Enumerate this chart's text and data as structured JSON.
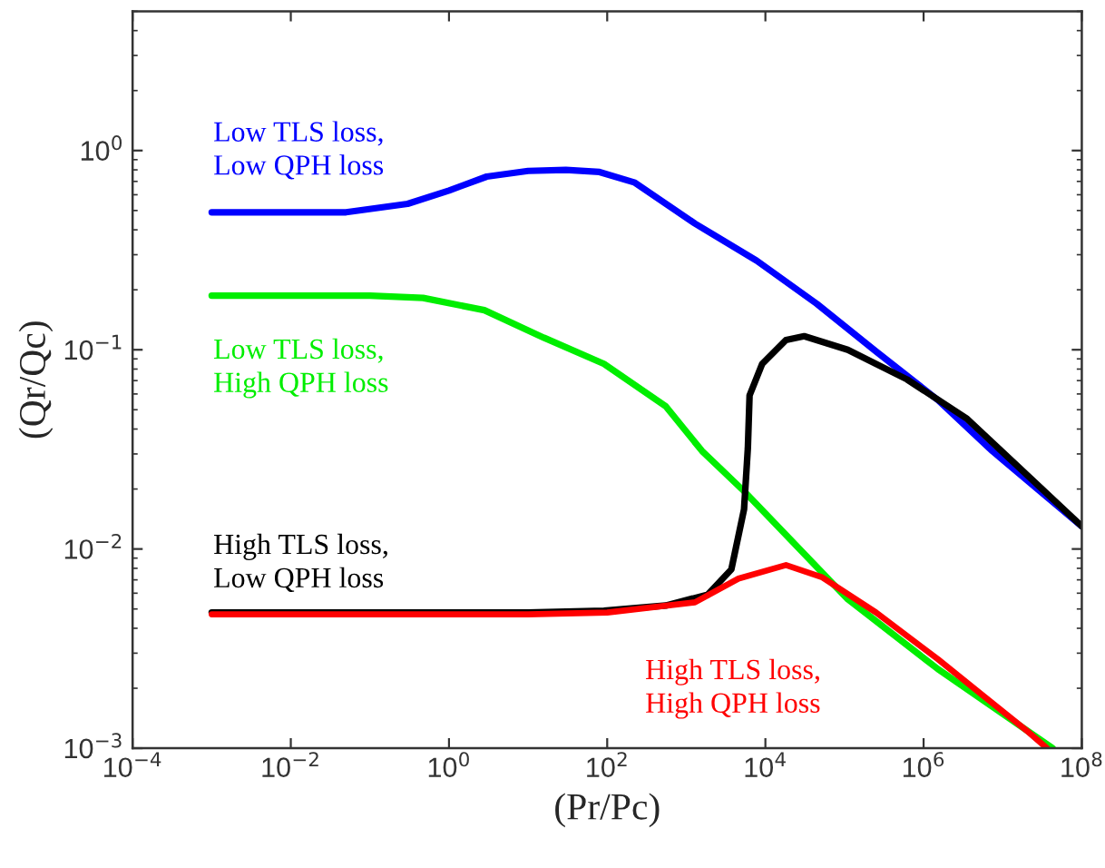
{
  "chart_data": {
    "type": "line",
    "xlabel": "(Pr/Pc)",
    "ylabel": "(Qr/Qc)",
    "log": "xy",
    "grid": false,
    "legend": false,
    "marker": "none",
    "line_style": "solid",
    "xlim": [
      0.0001,
      100000000
    ],
    "ylim": [
      0.001,
      5
    ],
    "xticks": [
      {
        "value": 0.0001,
        "label": "10$^{−4}$"
      },
      {
        "value": 0.01,
        "label": "10$^{−2}$"
      },
      {
        "value": 1,
        "label": "10$^{0}$"
      },
      {
        "value": 100,
        "label": "10$^{2}$"
      },
      {
        "value": 10000,
        "label": "10$^{4}$"
      },
      {
        "value": 1000000,
        "label": "10$^{6}$"
      },
      {
        "value": 100000000,
        "label": "10$^{8}$"
      }
    ],
    "yticks": [
      {
        "value": 0.001,
        "label": "10$^{−3}$"
      },
      {
        "value": 0.01,
        "label": "10$^{−2}$"
      },
      {
        "value": 0.1,
        "label": "10$^{−1}$"
      },
      {
        "value": 1,
        "label": "10$^{0}$"
      }
    ],
    "series": [
      {
        "name": "Low TLS loss,\nLow QPH loss",
        "color": "#0000ff",
        "x": [
          0.001,
          0.05,
          0.3,
          1,
          3,
          10,
          30,
          80,
          224,
          1288,
          7762,
          44700,
          251000,
          1510000,
          7410000,
          100000000
        ],
        "values": [
          0.49,
          0.49,
          0.54,
          0.63,
          0.74,
          0.79,
          0.8,
          0.78,
          0.69,
          0.43,
          0.28,
          0.17,
          0.098,
          0.056,
          0.031,
          0.013
        ]
      },
      {
        "name": "Low TLS loss,\nHigh QPH loss",
        "color": "#00ee00",
        "x": [
          0.001,
          0.1,
          0.47,
          2.8,
          15.8,
          91,
          550,
          1585,
          5370,
          110000,
          1510000,
          42700000
        ],
        "values": [
          0.187,
          0.187,
          0.182,
          0.158,
          0.115,
          0.085,
          0.052,
          0.031,
          0.0195,
          0.0056,
          0.0025,
          0.001
        ]
      },
      {
        "name": "High TLS loss,\nLow QPH loss",
        "color": "#000000",
        "x": [
          0.001,
          10,
          91,
          550,
          1862,
          3715,
          5370,
          6000,
          6310,
          9120,
          18200,
          30900,
          110000,
          617000,
          3550000,
          100000000
        ],
        "values": [
          0.0048,
          0.0048,
          0.0049,
          0.0052,
          0.0059,
          0.0079,
          0.0158,
          0.032,
          0.059,
          0.085,
          0.112,
          0.117,
          0.1,
          0.071,
          0.045,
          0.013
        ]
      },
      {
        "name": "High TLS loss,\nHigh QPH loss",
        "color": "#ff0000",
        "x": [
          0.001,
          10,
          100,
          1288,
          4570,
          18200,
          52500,
          251000,
          1510000,
          21400000,
          36300000
        ],
        "values": [
          0.0047,
          0.0047,
          0.0048,
          0.0054,
          0.0071,
          0.0083,
          0.0072,
          0.0048,
          0.0028,
          0.0012,
          0.001
        ]
      }
    ]
  }
}
